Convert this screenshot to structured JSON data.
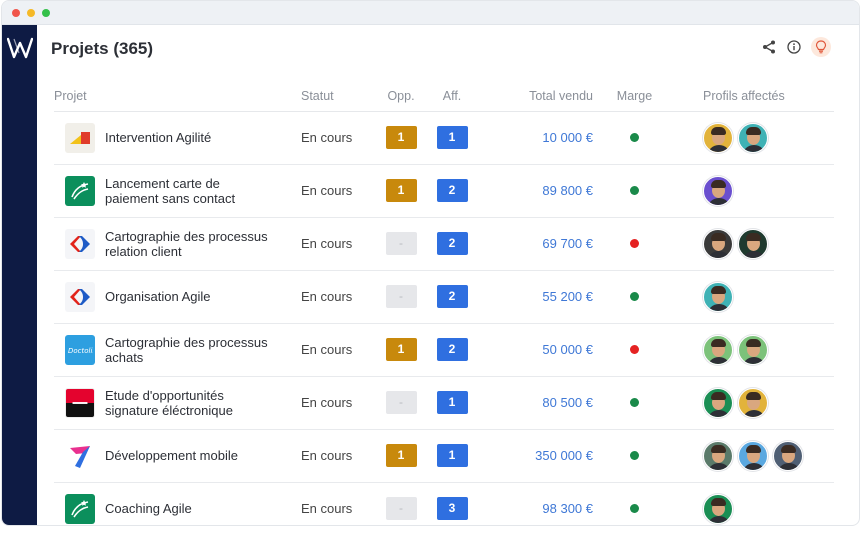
{
  "page": {
    "title": "Projets (365)"
  },
  "icons": {
    "share": "share-icon",
    "info": "info-icon",
    "bulb": "lightbulb-icon"
  },
  "table": {
    "headers": {
      "projet": "Projet",
      "statut": "Statut",
      "opp": "Opp.",
      "aff": "Aff.",
      "total": "Total vendu",
      "marge": "Marge",
      "profils": "Profils affectés"
    },
    "rows": [
      {
        "name": "Intervention Agilité",
        "logo": "red-yellow-logo",
        "status": "En cours",
        "opp": "1",
        "aff": "1",
        "total": "10 000 €",
        "marge": "green",
        "avatars": [
          "#e2b33b",
          "#3fb2b5"
        ]
      },
      {
        "name": "Lancement carte de paiement sans contact",
        "logo": "bnp-logo",
        "status": "En cours",
        "opp": "1",
        "aff": "2",
        "total": "89 800 €",
        "marge": "green",
        "avatars": [
          "#6a4fcf"
        ]
      },
      {
        "name": "Cartographie des processus relation client",
        "logo": "carrefour-logo",
        "status": "En cours",
        "opp": "-",
        "aff": "2",
        "total": "69 700 €",
        "marge": "red",
        "avatars": [
          "#3a3a3a",
          "#1f3a2f"
        ]
      },
      {
        "name": "Organisation Agile",
        "logo": "carrefour-logo",
        "status": "En cours",
        "opp": "-",
        "aff": "2",
        "total": "55 200 €",
        "marge": "green",
        "avatars": [
          "#3fb2b5"
        ]
      },
      {
        "name": "Cartographie des processus achats",
        "logo": "doctolib-logo",
        "status": "En cours",
        "opp": "1",
        "aff": "2",
        "total": "50 000 €",
        "marge": "red",
        "avatars": [
          "#7cc27a",
          "#7cc27a"
        ]
      },
      {
        "name": "Etude d'opportunités signature éléctronique",
        "logo": "societe-generale-logo",
        "status": "En cours",
        "opp": "-",
        "aff": "1",
        "total": "80 500 €",
        "marge": "green",
        "avatars": [
          "#1a8e54",
          "#e2b33b"
        ]
      },
      {
        "name": "Développement mobile",
        "logo": "arrow-logo",
        "status": "En cours",
        "opp": "1",
        "aff": "1",
        "total": "350 000 €",
        "marge": "green",
        "avatars": [
          "#5a7a6a",
          "#5aa8e0",
          "#4f5f74"
        ]
      },
      {
        "name": "Coaching Agile",
        "logo": "bnp-logo",
        "status": "En cours",
        "opp": "-",
        "aff": "3",
        "total": "98 300 €",
        "marge": "green",
        "avatars": [
          "#1a8e54"
        ]
      }
    ]
  },
  "colors": {
    "sidebar": "#0e1b44",
    "opp_badge": "#c8890c",
    "aff_badge": "#2f6fe0",
    "total_text": "#3f78d6",
    "marge_green": "#1a8a4a",
    "marge_red": "#e52222"
  }
}
